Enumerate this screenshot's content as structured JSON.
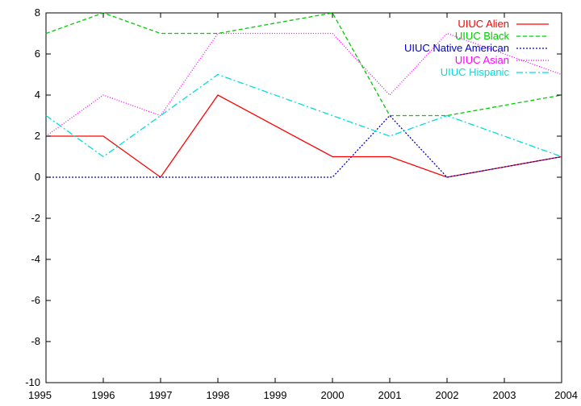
{
  "chart_data": {
    "type": "line",
    "title": "",
    "xlabel": "",
    "ylabel": "",
    "xlim": [
      1995,
      2004
    ],
    "ylim": [
      -10,
      8
    ],
    "xticks": [
      "1995",
      "1996",
      "1997",
      "1998",
      "1999",
      "2000",
      "2001",
      "2002",
      "2003",
      "2004"
    ],
    "yticks": [
      "-10",
      "-8",
      "-6",
      "-4",
      "-2",
      "0",
      "2",
      "4",
      "6",
      "8"
    ],
    "grid": false,
    "legend_position": "top-right",
    "x": [
      1995,
      1996,
      1997,
      1998,
      2000,
      2001,
      2002,
      2004
    ],
    "series": [
      {
        "name": "UIUC Alien",
        "color": "#ff0000",
        "dash": "solid",
        "values": [
          2,
          2,
          0,
          4,
          1,
          1,
          0,
          1
        ]
      },
      {
        "name": "UIUC Black",
        "color": "#00cc00",
        "dash": "dashed",
        "values": [
          7,
          8,
          7,
          7,
          8,
          3,
          3,
          4
        ]
      },
      {
        "name": "UIUC Native American",
        "color": "#0000cc",
        "dash": "dotted",
        "values": [
          0,
          0,
          0,
          0,
          0,
          3,
          0,
          1
        ]
      },
      {
        "name": "UIUC Asian",
        "color": "#ff00ff",
        "dash": "dotted-fine",
        "values": [
          2,
          4,
          3,
          7,
          7,
          4,
          7,
          5
        ]
      },
      {
        "name": "UIUC Hispanic",
        "color": "#00dddd",
        "dash": "dashdot",
        "values": [
          3,
          1,
          3,
          5,
          3,
          2,
          3,
          1
        ]
      }
    ]
  }
}
